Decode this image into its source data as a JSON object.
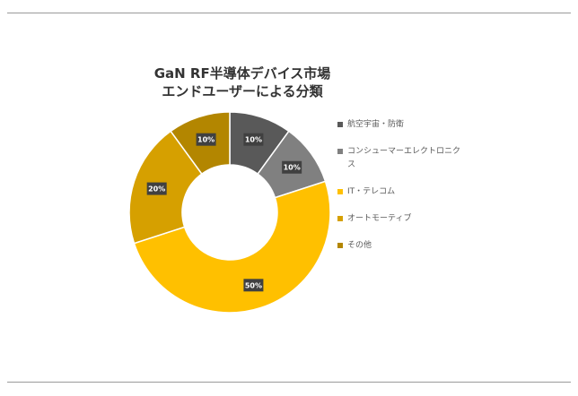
{
  "chart_data": {
    "type": "pie",
    "title_lines": [
      "GaN RF半導体デバイス市場",
      "エンドユーザーによる分類"
    ],
    "categories": [
      "航空宇宙・防衛",
      "コンシューマーエレクトロニクス",
      "IT・テレコム",
      "オートモーティブ",
      "その他"
    ],
    "values": [
      10,
      10,
      50,
      20,
      10
    ],
    "labels": [
      "10%",
      "10%",
      "50%",
      "20%",
      "10%"
    ],
    "colors": [
      "#595959",
      "#808080",
      "#FFC000",
      "#D6A000",
      "#B38600"
    ],
    "donut": true,
    "legend_position": "right"
  }
}
